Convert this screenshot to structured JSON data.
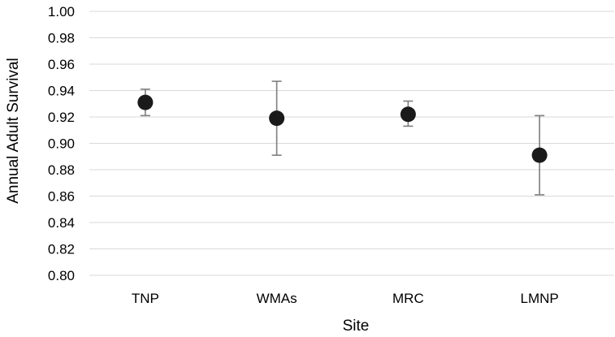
{
  "chart_data": {
    "type": "scatter",
    "title": "",
    "xlabel": "Site",
    "ylabel": "Annual Adult Survival",
    "categories": [
      "TNP",
      "WMAs",
      "MRC",
      "LMNP"
    ],
    "series": [
      {
        "values": [
          0.931,
          0.919,
          0.922,
          0.891
        ],
        "error_low": [
          0.921,
          0.891,
          0.913,
          0.861
        ],
        "error_high": [
          0.941,
          0.947,
          0.932,
          0.921
        ]
      }
    ],
    "ylim": [
      0.8,
      1.0
    ],
    "yticks": [
      "0.80",
      "0.82",
      "0.84",
      "0.86",
      "0.88",
      "0.90",
      "0.92",
      "0.94",
      "0.96",
      "0.98",
      "1.00"
    ],
    "grid": true,
    "legend": "none",
    "colors": {
      "marker": "#1a1a1a",
      "error_bar": "#7f7f7f",
      "grid": "#d9d9d9"
    }
  }
}
